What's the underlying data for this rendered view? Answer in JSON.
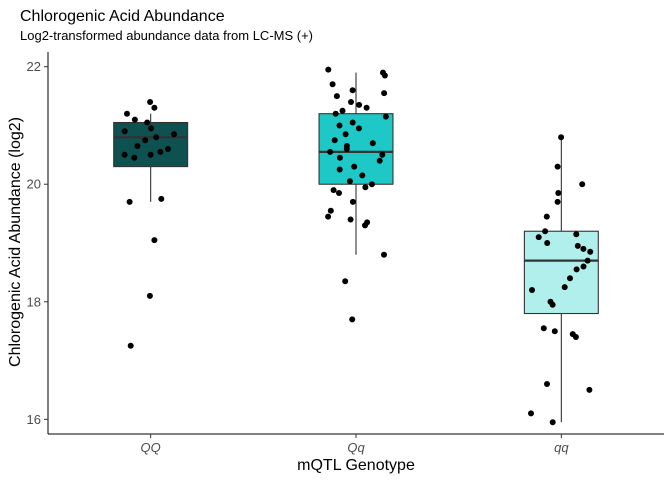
{
  "chart_data": {
    "type": "box-jitter",
    "title": "Chlorogenic Acid Abundance",
    "subtitle": "Log2-transformed abundance data from LC-MS (+)",
    "xlabel": "mQTL Genotype",
    "ylabel": "Chlorogenic Acid Abundance (log2)",
    "ylim": [
      15.75,
      22.25
    ],
    "yticks": [
      16,
      18,
      20,
      22
    ],
    "grid": false,
    "categories": [
      "QQ",
      "Qq",
      "qq"
    ],
    "colors": [
      "#0d5150",
      "#1ec8c6",
      "#b0efeb"
    ],
    "boxes": [
      {
        "q1": 20.3,
        "median": 20.8,
        "q3": 21.05,
        "whisker_low": 19.7,
        "whisker_high": 21.2
      },
      {
        "q1": 20.0,
        "median": 20.55,
        "q3": 21.2,
        "whisker_low": 18.8,
        "whisker_high": 21.9
      },
      {
        "q1": 17.8,
        "median": 18.7,
        "q3": 19.2,
        "whisker_low": 15.95,
        "whisker_high": 20.8
      }
    ],
    "points": [
      {
        "group": "QQ",
        "values": [
          21.4,
          21.3,
          21.2,
          21.1,
          21.05,
          20.95,
          20.9,
          20.85,
          20.8,
          20.75,
          20.65,
          20.6,
          20.55,
          20.5,
          20.5,
          20.45,
          19.75,
          19.7,
          19.05,
          18.1,
          17.25
        ]
      },
      {
        "group": "Qq",
        "values": [
          21.95,
          21.9,
          21.85,
          21.7,
          21.6,
          21.55,
          21.5,
          21.4,
          21.35,
          21.3,
          21.25,
          21.2,
          21.15,
          21.05,
          21.0,
          20.95,
          20.85,
          20.75,
          20.7,
          20.65,
          20.6,
          20.55,
          20.5,
          20.45,
          20.4,
          20.3,
          20.25,
          20.15,
          20.05,
          20.0,
          19.95,
          19.9,
          19.85,
          19.7,
          19.55,
          19.45,
          19.4,
          19.35,
          19.3,
          18.8,
          18.35,
          17.7
        ]
      },
      {
        "group": "qq",
        "values": [
          20.8,
          20.3,
          20.0,
          19.85,
          19.7,
          19.45,
          19.2,
          19.15,
          19.1,
          19.0,
          18.95,
          18.9,
          18.85,
          18.7,
          18.6,
          18.55,
          18.4,
          18.25,
          18.2,
          18.0,
          17.95,
          17.55,
          17.5,
          17.45,
          17.4,
          16.6,
          16.5,
          16.1,
          15.95
        ]
      }
    ]
  }
}
